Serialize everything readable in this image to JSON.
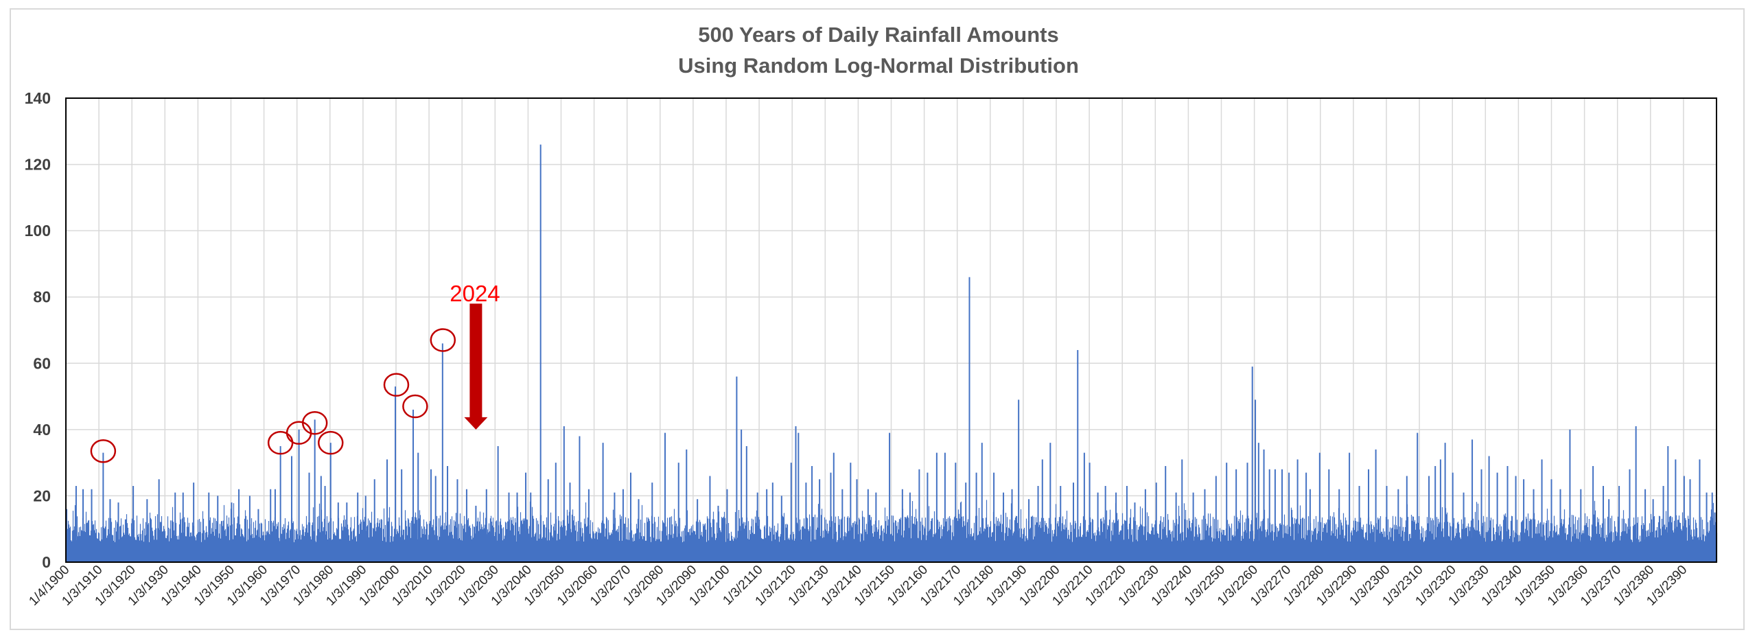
{
  "chart_data": {
    "type": "bar",
    "title": [
      "500 Years of Daily Rainfall Amounts",
      "Using Random Log-Normal Distribution"
    ],
    "xlabel": "",
    "ylabel": "",
    "ylim": [
      0,
      140
    ],
    "yticks": [
      0,
      20,
      40,
      60,
      80,
      100,
      120,
      140
    ],
    "x_range_years": [
      1900,
      2400
    ],
    "xtick_labels": [
      "1/4/1900",
      "1/3/1910",
      "1/3/1920",
      "1/3/1930",
      "1/3/1940",
      "1/3/1950",
      "1/3/1960",
      "1/3/1970",
      "1/3/1980",
      "1/3/1990",
      "1/3/2000",
      "1/3/2010",
      "1/3/2020",
      "1/3/2030",
      "1/3/2040",
      "1/3/2050",
      "1/3/2060",
      "1/3/2070",
      "1/3/2080",
      "1/3/2090",
      "1/3/2100",
      "1/3/2110",
      "1/3/2120",
      "1/3/2130",
      "1/3/2140",
      "1/3/2150",
      "1/3/2160",
      "1/3/2170",
      "1/3/2180",
      "1/3/2190",
      "1/3/2200",
      "1/3/2210",
      "1/3/2220",
      "1/3/2230",
      "1/3/2240",
      "1/3/2250",
      "1/3/2260",
      "1/3/2270",
      "1/3/2280",
      "1/3/2290",
      "1/3/2300",
      "1/3/2310",
      "1/3/2320",
      "1/3/2330",
      "1/3/2340",
      "1/3/2350",
      "1/3/2360",
      "1/3/2370",
      "1/3/2380",
      "1/3/2390"
    ],
    "grid": true,
    "series": [
      {
        "name": "Daily Rainfall",
        "color": "#4472C4",
        "baseline_band": [
          6,
          14
        ],
        "peaks": [
          [
            1903.1,
            23
          ],
          [
            1905.2,
            22
          ],
          [
            1907.8,
            22
          ],
          [
            1911.3,
            33
          ],
          [
            1913.4,
            19
          ],
          [
            1915.9,
            18
          ],
          [
            1920.4,
            23
          ],
          [
            1924.6,
            19
          ],
          [
            1928.2,
            25
          ],
          [
            1933.1,
            21
          ],
          [
            1935.5,
            21
          ],
          [
            1938.7,
            24
          ],
          [
            1943.3,
            21
          ],
          [
            1946.0,
            20
          ],
          [
            1950.2,
            18
          ],
          [
            1952.4,
            22
          ],
          [
            1955.7,
            20
          ],
          [
            1958.3,
            16
          ],
          [
            1962.0,
            22
          ],
          [
            1963.4,
            22
          ],
          [
            1965.0,
            35
          ],
          [
            1968.4,
            32
          ],
          [
            1970.6,
            40
          ],
          [
            1973.7,
            27
          ],
          [
            1975.4,
            43
          ],
          [
            1977.3,
            26
          ],
          [
            1978.5,
            23
          ],
          [
            1980.2,
            36
          ],
          [
            1982.5,
            18
          ],
          [
            1985.1,
            18
          ],
          [
            1988.4,
            21
          ],
          [
            1990.8,
            20
          ],
          [
            1993.5,
            25
          ],
          [
            1997.3,
            31
          ],
          [
            1999.8,
            53
          ],
          [
            2001.7,
            28
          ],
          [
            2005.2,
            46
          ],
          [
            2006.7,
            33
          ],
          [
            2010.6,
            28
          ],
          [
            2012.0,
            26
          ],
          [
            2014.1,
            66
          ],
          [
            2015.6,
            29
          ],
          [
            2018.6,
            25
          ],
          [
            2021.4,
            22
          ],
          [
            2024.2,
            17
          ],
          [
            2027.4,
            22
          ],
          [
            2030.9,
            35
          ],
          [
            2034.2,
            21
          ],
          [
            2036.7,
            21
          ],
          [
            2039.3,
            27
          ],
          [
            2040.8,
            21
          ],
          [
            2043.8,
            126
          ],
          [
            2046.1,
            25
          ],
          [
            2048.4,
            30
          ],
          [
            2050.9,
            41
          ],
          [
            2052.7,
            24
          ],
          [
            2055.6,
            38
          ],
          [
            2058.4,
            22
          ],
          [
            2062.7,
            36
          ],
          [
            2066.2,
            21
          ],
          [
            2068.8,
            22
          ],
          [
            2071.1,
            27
          ],
          [
            2073.5,
            19
          ],
          [
            2077.6,
            24
          ],
          [
            2081.5,
            39
          ],
          [
            2085.6,
            30
          ],
          [
            2088.0,
            34
          ],
          [
            2091.3,
            19
          ],
          [
            2095.1,
            26
          ],
          [
            2097.6,
            17
          ],
          [
            2100.3,
            22
          ],
          [
            2103.2,
            56
          ],
          [
            2104.6,
            40
          ],
          [
            2106.2,
            35
          ],
          [
            2109.5,
            21
          ],
          [
            2112.3,
            22
          ],
          [
            2114.1,
            24
          ],
          [
            2116.8,
            20
          ],
          [
            2119.7,
            30
          ],
          [
            2121.1,
            41
          ],
          [
            2121.9,
            39
          ],
          [
            2124.2,
            24
          ],
          [
            2126.0,
            29
          ],
          [
            2128.3,
            25
          ],
          [
            2131.7,
            27
          ],
          [
            2132.6,
            33
          ],
          [
            2135.2,
            22
          ],
          [
            2137.7,
            30
          ],
          [
            2139.6,
            25
          ],
          [
            2143.0,
            22
          ],
          [
            2145.4,
            21
          ],
          [
            2149.5,
            39
          ],
          [
            2153.4,
            22
          ],
          [
            2155.7,
            21
          ],
          [
            2158.5,
            28
          ],
          [
            2161.0,
            27
          ],
          [
            2163.8,
            33
          ],
          [
            2166.3,
            33
          ],
          [
            2169.5,
            30
          ],
          [
            2172.6,
            24
          ],
          [
            2173.7,
            86
          ],
          [
            2175.8,
            27
          ],
          [
            2177.5,
            36
          ],
          [
            2181.1,
            27
          ],
          [
            2184.0,
            21
          ],
          [
            2186.6,
            22
          ],
          [
            2188.6,
            49
          ],
          [
            2191.7,
            19
          ],
          [
            2194.5,
            23
          ],
          [
            2195.8,
            31
          ],
          [
            2198.2,
            36
          ],
          [
            2201.3,
            23
          ],
          [
            2205.2,
            24
          ],
          [
            2206.5,
            64
          ],
          [
            2208.5,
            33
          ],
          [
            2210.1,
            30
          ],
          [
            2212.6,
            21
          ],
          [
            2214.9,
            23
          ],
          [
            2218.1,
            21
          ],
          [
            2221.4,
            23
          ],
          [
            2223.8,
            18
          ],
          [
            2227.0,
            22
          ],
          [
            2230.3,
            24
          ],
          [
            2233.1,
            29
          ],
          [
            2236.3,
            21
          ],
          [
            2238.1,
            31
          ],
          [
            2241.5,
            21
          ],
          [
            2245.0,
            22
          ],
          [
            2248.4,
            26
          ],
          [
            2251.6,
            30
          ],
          [
            2254.5,
            28
          ],
          [
            2257.9,
            30
          ],
          [
            2259.4,
            59
          ],
          [
            2260.3,
            49
          ],
          [
            2261.3,
            36
          ],
          [
            2262.9,
            34
          ],
          [
            2264.6,
            28
          ],
          [
            2266.3,
            28
          ],
          [
            2268.4,
            28
          ],
          [
            2270.5,
            27
          ],
          [
            2273.1,
            31
          ],
          [
            2275.7,
            27
          ],
          [
            2276.9,
            22
          ],
          [
            2279.8,
            33
          ],
          [
            2282.6,
            28
          ],
          [
            2285.7,
            22
          ],
          [
            2288.8,
            33
          ],
          [
            2291.8,
            23
          ],
          [
            2294.6,
            28
          ],
          [
            2296.8,
            34
          ],
          [
            2300.1,
            23
          ],
          [
            2303.6,
            22
          ],
          [
            2306.2,
            26
          ],
          [
            2309.4,
            39
          ],
          [
            2312.9,
            26
          ],
          [
            2314.8,
            29
          ],
          [
            2316.4,
            31
          ],
          [
            2317.8,
            36
          ],
          [
            2320.1,
            27
          ],
          [
            2323.4,
            21
          ],
          [
            2326.0,
            37
          ],
          [
            2328.8,
            28
          ],
          [
            2331.1,
            32
          ],
          [
            2333.6,
            27
          ],
          [
            2336.7,
            29
          ],
          [
            2339.2,
            26
          ],
          [
            2341.6,
            25
          ],
          [
            2344.6,
            22
          ],
          [
            2347.1,
            31
          ],
          [
            2350.0,
            25
          ],
          [
            2352.7,
            22
          ],
          [
            2355.6,
            40
          ],
          [
            2358.9,
            22
          ],
          [
            2362.6,
            29
          ],
          [
            2365.7,
            23
          ],
          [
            2367.4,
            19
          ],
          [
            2370.5,
            23
          ],
          [
            2373.7,
            28
          ],
          [
            2375.6,
            41
          ],
          [
            2378.4,
            22
          ],
          [
            2380.8,
            19
          ],
          [
            2383.9,
            23
          ],
          [
            2385.3,
            35
          ],
          [
            2387.6,
            31
          ],
          [
            2390.2,
            26
          ],
          [
            2392.0,
            25
          ],
          [
            2394.9,
            31
          ],
          [
            2397.0,
            21
          ],
          [
            2398.7,
            21
          ],
          [
            2399.5,
            15
          ]
        ]
      }
    ],
    "annotations": [
      {
        "type": "text",
        "text": "2024",
        "color": "#FF0000",
        "at": [
          2023.9,
          81
        ]
      },
      {
        "type": "arrow",
        "color": "#C00000",
        "x": 2024.2,
        "from": 78,
        "to": 40
      },
      {
        "type": "circle",
        "color": "#C00000",
        "center": [
          1911.3,
          33.5
        ]
      },
      {
        "type": "circle",
        "color": "#C00000",
        "center": [
          1965.0,
          36
        ]
      },
      {
        "type": "circle",
        "color": "#C00000",
        "center": [
          1970.6,
          39
        ]
      },
      {
        "type": "circle",
        "color": "#C00000",
        "center": [
          1975.4,
          42
        ]
      },
      {
        "type": "circle",
        "color": "#C00000",
        "center": [
          1980.2,
          36
        ]
      },
      {
        "type": "circle",
        "color": "#C00000",
        "center": [
          2000.1,
          53.5
        ]
      },
      {
        "type": "circle",
        "color": "#C00000",
        "center": [
          2005.8,
          47
        ]
      },
      {
        "type": "circle",
        "color": "#C00000",
        "center": [
          2014.2,
          67
        ]
      }
    ]
  }
}
